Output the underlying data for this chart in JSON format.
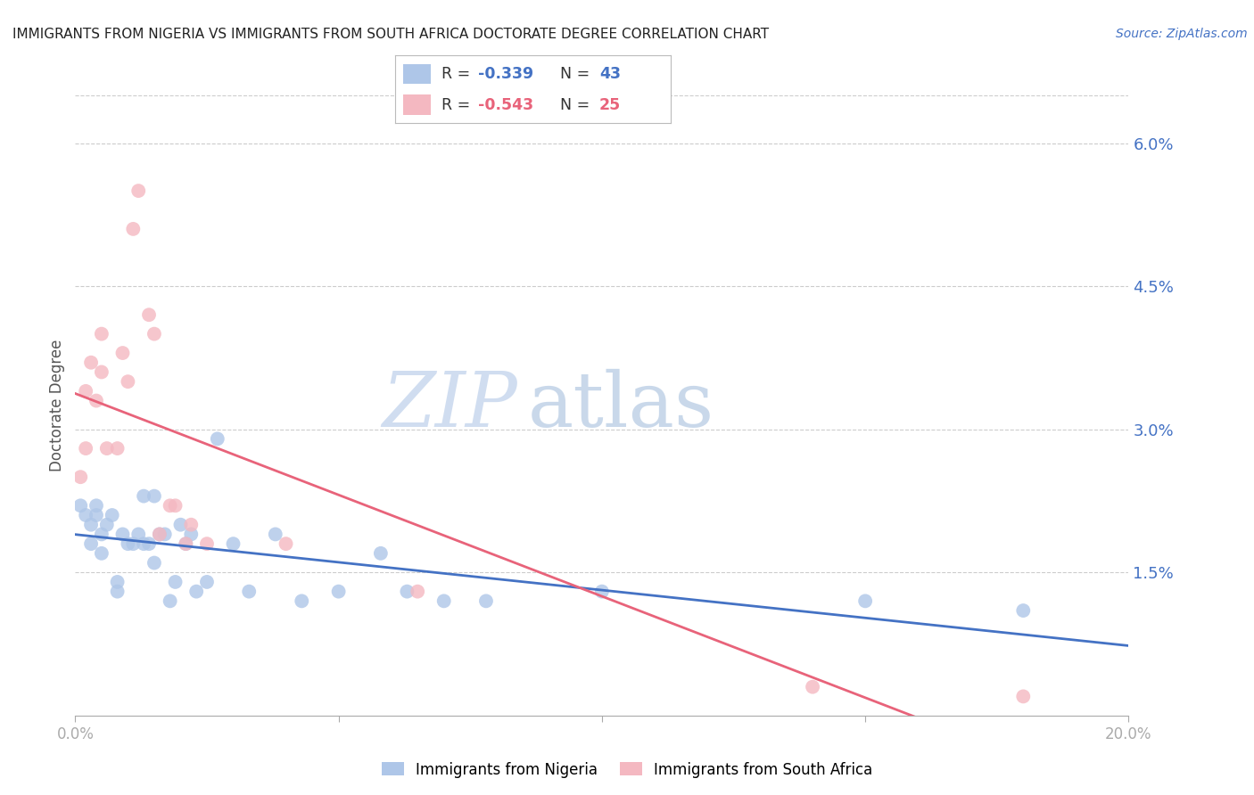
{
  "title": "IMMIGRANTS FROM NIGERIA VS IMMIGRANTS FROM SOUTH AFRICA DOCTORATE DEGREE CORRELATION CHART",
  "source": "Source: ZipAtlas.com",
  "ylabel": "Doctorate Degree",
  "ytick_labels": [
    "6.0%",
    "4.5%",
    "3.0%",
    "1.5%"
  ],
  "ytick_values": [
    0.06,
    0.045,
    0.03,
    0.015
  ],
  "xlim": [
    0.0,
    0.2
  ],
  "ylim": [
    0.0,
    0.065
  ],
  "nigeria_R": -0.339,
  "nigeria_N": 43,
  "sa_R": -0.543,
  "sa_N": 25,
  "nigeria_color": "#aec6e8",
  "nigeria_line_color": "#4472c4",
  "sa_color": "#f4b8c1",
  "sa_line_color": "#e8637a",
  "nigeria_x": [
    0.001,
    0.002,
    0.003,
    0.003,
    0.004,
    0.004,
    0.005,
    0.005,
    0.006,
    0.007,
    0.008,
    0.008,
    0.009,
    0.01,
    0.011,
    0.012,
    0.013,
    0.013,
    0.014,
    0.015,
    0.015,
    0.016,
    0.017,
    0.018,
    0.019,
    0.02,
    0.021,
    0.022,
    0.023,
    0.025,
    0.027,
    0.03,
    0.033,
    0.038,
    0.043,
    0.05,
    0.058,
    0.063,
    0.07,
    0.078,
    0.1,
    0.15,
    0.18
  ],
  "nigeria_y": [
    0.022,
    0.021,
    0.02,
    0.018,
    0.022,
    0.021,
    0.019,
    0.017,
    0.02,
    0.021,
    0.014,
    0.013,
    0.019,
    0.018,
    0.018,
    0.019,
    0.023,
    0.018,
    0.018,
    0.023,
    0.016,
    0.019,
    0.019,
    0.012,
    0.014,
    0.02,
    0.018,
    0.019,
    0.013,
    0.014,
    0.029,
    0.018,
    0.013,
    0.019,
    0.012,
    0.013,
    0.017,
    0.013,
    0.012,
    0.012,
    0.013,
    0.012,
    0.011
  ],
  "sa_x": [
    0.001,
    0.002,
    0.002,
    0.003,
    0.004,
    0.005,
    0.005,
    0.006,
    0.008,
    0.009,
    0.01,
    0.011,
    0.012,
    0.014,
    0.015,
    0.016,
    0.018,
    0.019,
    0.021,
    0.022,
    0.025,
    0.04,
    0.065,
    0.14,
    0.18
  ],
  "sa_y": [
    0.025,
    0.028,
    0.034,
    0.037,
    0.033,
    0.036,
    0.04,
    0.028,
    0.028,
    0.038,
    0.035,
    0.051,
    0.055,
    0.042,
    0.04,
    0.019,
    0.022,
    0.022,
    0.018,
    0.02,
    0.018,
    0.018,
    0.013,
    0.003,
    0.002
  ],
  "watermark_zip": "ZIP",
  "watermark_atlas": "atlas",
  "background_color": "#ffffff",
  "grid_color": "#cccccc",
  "axis_color": "#4472c4",
  "marker_size": 130
}
